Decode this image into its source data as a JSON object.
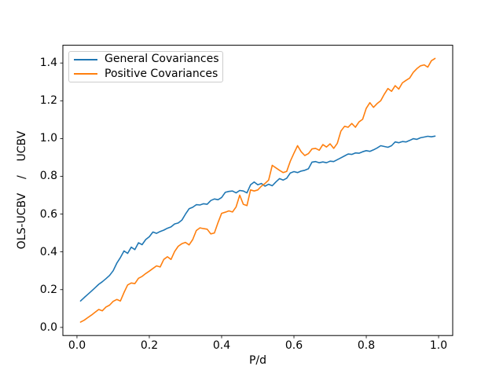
{
  "figure": {
    "background": "#ffffff",
    "axis_color": "#000000"
  },
  "chart_data": {
    "type": "line",
    "title": "",
    "xlabel": "P/d",
    "ylabel": "OLS-UCBV    /    UCBV",
    "grid": false,
    "xlim": [
      -0.039,
      1.039
    ],
    "ylim": [
      -0.043,
      1.494
    ],
    "xticks": [
      0.0,
      0.2,
      0.4,
      0.6,
      0.8,
      1.0
    ],
    "xtick_labels": [
      "0.0",
      "0.2",
      "0.4",
      "0.6",
      "0.8",
      "1.0"
    ],
    "yticks": [
      0.0,
      0.2,
      0.4,
      0.6,
      0.8,
      1.0,
      1.2,
      1.4
    ],
    "ytick_labels": [
      "0.0",
      "0.2",
      "0.4",
      "0.6",
      "0.8",
      "1.0",
      "1.2",
      "1.4"
    ],
    "legend": {
      "position": "upper-left",
      "entries": [
        "General Covariances",
        "Positive Covariances"
      ]
    },
    "x": [
      0.01,
      0.02,
      0.03,
      0.04,
      0.05,
      0.06,
      0.07,
      0.08,
      0.09,
      0.1,
      0.11,
      0.12,
      0.13,
      0.14,
      0.15,
      0.16,
      0.17,
      0.18,
      0.19,
      0.2,
      0.21,
      0.22,
      0.23,
      0.24,
      0.25,
      0.26,
      0.27,
      0.28,
      0.29,
      0.3,
      0.31,
      0.32,
      0.33,
      0.34,
      0.35,
      0.36,
      0.37,
      0.38,
      0.39,
      0.4,
      0.41,
      0.42,
      0.43,
      0.44,
      0.45,
      0.46,
      0.47,
      0.48,
      0.49,
      0.5,
      0.51,
      0.52,
      0.53,
      0.54,
      0.55,
      0.56,
      0.57,
      0.58,
      0.59,
      0.6,
      0.61,
      0.62,
      0.63,
      0.64,
      0.65,
      0.66,
      0.67,
      0.68,
      0.69,
      0.7,
      0.71,
      0.72,
      0.73,
      0.74,
      0.75,
      0.76,
      0.77,
      0.78,
      0.79,
      0.8,
      0.81,
      0.82,
      0.83,
      0.84,
      0.85,
      0.86,
      0.87,
      0.88,
      0.89,
      0.9,
      0.91,
      0.92,
      0.93,
      0.94,
      0.95,
      0.96,
      0.97,
      0.98,
      0.99
    ],
    "series": [
      {
        "name": "General Covariances",
        "color": "#1f77b4",
        "values": [
          0.14,
          0.158,
          0.175,
          0.192,
          0.21,
          0.228,
          0.242,
          0.258,
          0.275,
          0.3,
          0.34,
          0.37,
          0.405,
          0.392,
          0.425,
          0.412,
          0.448,
          0.438,
          0.465,
          0.48,
          0.505,
          0.498,
          0.508,
          0.515,
          0.525,
          0.532,
          0.548,
          0.553,
          0.568,
          0.6,
          0.628,
          0.636,
          0.65,
          0.648,
          0.655,
          0.652,
          0.672,
          0.68,
          0.676,
          0.688,
          0.715,
          0.72,
          0.722,
          0.712,
          0.725,
          0.722,
          0.712,
          0.755,
          0.77,
          0.755,
          0.762,
          0.748,
          0.758,
          0.75,
          0.77,
          0.788,
          0.78,
          0.79,
          0.818,
          0.825,
          0.82,
          0.828,
          0.832,
          0.84,
          0.875,
          0.878,
          0.872,
          0.876,
          0.872,
          0.88,
          0.878,
          0.888,
          0.898,
          0.908,
          0.918,
          0.916,
          0.924,
          0.922,
          0.93,
          0.936,
          0.932,
          0.94,
          0.95,
          0.962,
          0.958,
          0.954,
          0.962,
          0.982,
          0.978,
          0.984,
          0.982,
          0.99,
          0.999,
          0.996,
          1.004,
          1.008,
          1.012,
          1.009,
          1.013
        ]
      },
      {
        "name": "Positive Covariances",
        "color": "#ff7f0e",
        "values": [
          0.028,
          0.038,
          0.052,
          0.065,
          0.08,
          0.095,
          0.088,
          0.108,
          0.118,
          0.138,
          0.148,
          0.14,
          0.185,
          0.225,
          0.235,
          0.232,
          0.26,
          0.27,
          0.285,
          0.298,
          0.312,
          0.326,
          0.32,
          0.36,
          0.374,
          0.36,
          0.402,
          0.43,
          0.443,
          0.45,
          0.437,
          0.465,
          0.513,
          0.527,
          0.523,
          0.52,
          0.495,
          0.5,
          0.555,
          0.604,
          0.61,
          0.617,
          0.611,
          0.638,
          0.7,
          0.652,
          0.645,
          0.728,
          0.722,
          0.728,
          0.748,
          0.762,
          0.78,
          0.858,
          0.845,
          0.832,
          0.82,
          0.826,
          0.88,
          0.922,
          0.962,
          0.93,
          0.91,
          0.92,
          0.945,
          0.948,
          0.938,
          0.968,
          0.955,
          0.972,
          0.948,
          0.975,
          1.04,
          1.065,
          1.06,
          1.08,
          1.06,
          1.088,
          1.102,
          1.16,
          1.19,
          1.165,
          1.185,
          1.2,
          1.235,
          1.265,
          1.25,
          1.28,
          1.262,
          1.295,
          1.308,
          1.32,
          1.35,
          1.37,
          1.385,
          1.39,
          1.378,
          1.412,
          1.424
        ]
      }
    ]
  }
}
